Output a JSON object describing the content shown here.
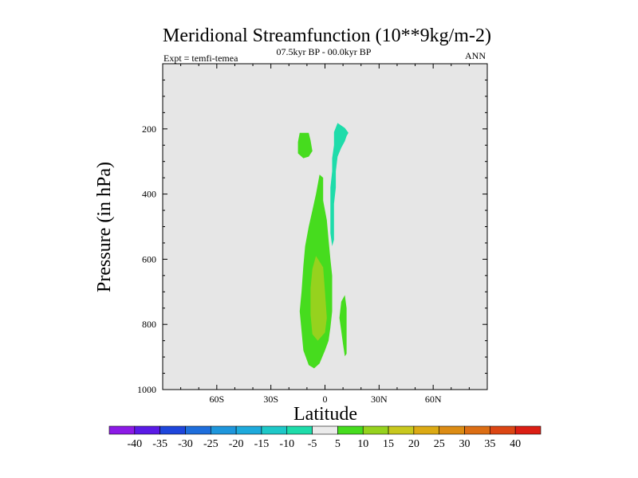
{
  "chart_data": {
    "type": "contour",
    "title": "Meridional Streamfunction (10**9kg/m-2)",
    "left_label": "Expt = temfi-temea",
    "center_label": "07.5kyr BP - 00.0kyr BP",
    "right_label": "ANN",
    "xlabel": "Latitude",
    "ylabel": "Pressure (in hPa)",
    "xlim": [
      -90,
      90
    ],
    "ylim": [
      1000,
      0
    ],
    "x_ticks": [
      {
        "value": -60,
        "label": "60S"
      },
      {
        "value": -30,
        "label": "30S"
      },
      {
        "value": 0,
        "label": "0"
      },
      {
        "value": 30,
        "label": "30N"
      },
      {
        "value": 60,
        "label": "60N"
      }
    ],
    "y_ticks": [
      {
        "value": 200,
        "label": "200"
      },
      {
        "value": 400,
        "label": "400"
      },
      {
        "value": 600,
        "label": "600"
      },
      {
        "value": 800,
        "label": "800"
      },
      {
        "value": 1000,
        "label": "1000"
      }
    ],
    "regions": [
      {
        "name": "upper-positive-cell",
        "level": "5 to 10",
        "points": [
          [
            -14,
            212
          ],
          [
            -9,
            212
          ],
          [
            -8,
            235
          ],
          [
            -7,
            268
          ],
          [
            -9,
            285
          ],
          [
            -12,
            290
          ],
          [
            -15,
            275
          ],
          [
            -15,
            240
          ]
        ]
      },
      {
        "name": "upper-negative-cell",
        "level": "-10 to -5",
        "points": [
          [
            7,
            182
          ],
          [
            11,
            197
          ],
          [
            13,
            212
          ],
          [
            12,
            222
          ],
          [
            11,
            238
          ],
          [
            9,
            258
          ],
          [
            7,
            285
          ],
          [
            6,
            330
          ],
          [
            6,
            380
          ],
          [
            5,
            430
          ],
          [
            5,
            480
          ],
          [
            5,
            540
          ],
          [
            4,
            560
          ],
          [
            3,
            520
          ],
          [
            3,
            440
          ],
          [
            3,
            380
          ],
          [
            4,
            330
          ],
          [
            4,
            290
          ],
          [
            5,
            250
          ],
          [
            5,
            210
          ]
        ]
      },
      {
        "name": "main-positive-cell",
        "level": "5 to 10",
        "points": [
          [
            -3,
            340
          ],
          [
            -1,
            350
          ],
          [
            -1,
            420
          ],
          [
            1,
            480
          ],
          [
            2,
            540
          ],
          [
            3,
            600
          ],
          [
            4,
            650
          ],
          [
            4,
            720
          ],
          [
            4,
            760
          ],
          [
            3,
            810
          ],
          [
            2,
            850
          ],
          [
            0,
            880
          ],
          [
            -3,
            920
          ],
          [
            -6,
            935
          ],
          [
            -9,
            925
          ],
          [
            -12,
            880
          ],
          [
            -13,
            820
          ],
          [
            -14,
            760
          ],
          [
            -13,
            700
          ],
          [
            -12,
            620
          ],
          [
            -11,
            560
          ],
          [
            -9,
            500
          ],
          [
            -7,
            450
          ],
          [
            -5,
            400
          ]
        ]
      },
      {
        "name": "main-core-cell",
        "level": "10 to 15",
        "points": [
          [
            -5,
            590
          ],
          [
            -1,
            625
          ],
          [
            0,
            700
          ],
          [
            1,
            780
          ],
          [
            0,
            825
          ],
          [
            -4,
            850
          ],
          [
            -7,
            830
          ],
          [
            -8,
            770
          ],
          [
            -8,
            690
          ],
          [
            -7,
            630
          ]
        ]
      },
      {
        "name": "lower-positive-cell",
        "level": "5 to 10",
        "points": [
          [
            11,
            710
          ],
          [
            12,
            750
          ],
          [
            12,
            820
          ],
          [
            12,
            890
          ],
          [
            11,
            898
          ],
          [
            10,
            860
          ],
          [
            9,
            820
          ],
          [
            8,
            780
          ],
          [
            9,
            730
          ]
        ]
      }
    ],
    "colorbar": {
      "levels": [
        -40,
        -35,
        -30,
        -25,
        -20,
        -15,
        -10,
        -5,
        5,
        10,
        15,
        20,
        25,
        30,
        35,
        40
      ],
      "colors": [
        "#8c1ae6",
        "#5a1ae6",
        "#1e46dc",
        "#1e6edc",
        "#1e96dc",
        "#1eaadc",
        "#1ec8c8",
        "#1edcaa",
        "#ebebeb",
        "#46dc1e",
        "#96d21e",
        "#c8c81e",
        "#dcaa14",
        "#dc8c14",
        "#dc6e14",
        "#dc4614",
        "#dc1e14"
      ]
    },
    "background": "#e6e6e6"
  }
}
